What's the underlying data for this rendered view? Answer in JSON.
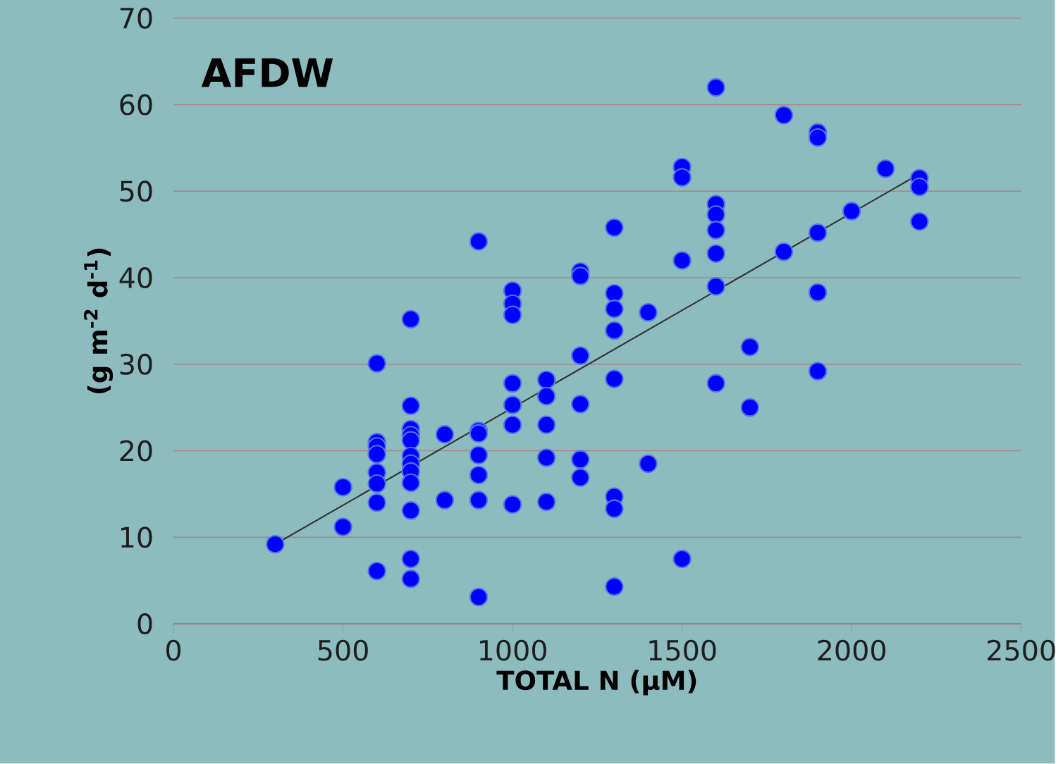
{
  "chart_data": {
    "type": "scatter",
    "title": "AFDW",
    "xlabel": "TOTAL N (µM)",
    "ylabel": "(g m$^{-2}$ d$^{-1}$)",
    "xlim": [
      0,
      2500
    ],
    "ylim": [
      0,
      70
    ],
    "xticks": [
      0,
      500,
      1000,
      1500,
      2000,
      2500
    ],
    "yticks": [
      0,
      10,
      20,
      30,
      40,
      50,
      60,
      70
    ],
    "grid": "y",
    "series": [
      {
        "color": "#0000ff",
        "marker": "circle",
        "x": [
          300,
          500,
          500,
          600,
          600,
          600,
          600,
          600,
          600,
          600,
          600,
          700,
          700,
          700,
          700,
          700,
          700,
          700,
          700,
          700,
          700,
          700,
          700,
          800,
          800,
          900,
          900,
          900,
          900,
          900,
          900,
          900,
          1000,
          1000,
          1000,
          1000,
          1000,
          1000,
          1000,
          1100,
          1100,
          1100,
          1100,
          1100,
          1200,
          1200,
          1200,
          1200,
          1200,
          1200,
          1300,
          1300,
          1300,
          1300,
          1300,
          1300,
          1300,
          1300,
          1400,
          1400,
          1500,
          1500,
          1500,
          1500,
          1600,
          1600,
          1600,
          1600,
          1600,
          1600,
          1600,
          1700,
          1700,
          1800,
          1800,
          1900,
          1900,
          1900,
          1900,
          1900,
          2000,
          2100,
          2200,
          2200,
          2200
        ],
        "values": [
          9.2,
          15.8,
          11.2,
          30.1,
          21,
          20.5,
          19.6,
          17.5,
          16.2,
          14,
          6.1,
          35.2,
          25.2,
          22.5,
          21.8,
          21.2,
          19.4,
          18.5,
          17.6,
          16.3,
          13.1,
          7.5,
          5.2,
          21.9,
          14.3,
          44.2,
          22.3,
          22,
          19.5,
          17.2,
          14.3,
          3.1,
          38.5,
          37,
          35.7,
          27.8,
          25.3,
          23,
          13.8,
          28.2,
          26.3,
          23,
          19.2,
          14.1,
          40.7,
          40.2,
          31,
          25.4,
          19,
          16.9,
          45.8,
          38.2,
          36.4,
          33.9,
          28.3,
          14.7,
          13.3,
          4.3,
          36,
          18.5,
          52.8,
          51.6,
          42,
          7.5,
          62,
          48.5,
          47.3,
          45.5,
          42.8,
          39,
          27.8,
          32,
          25,
          58.8,
          43,
          56.8,
          56.2,
          45.2,
          38.3,
          29.2,
          47.7,
          52.6,
          51.5,
          50.5,
          46.5
        ]
      },
      {
        "type": "line",
        "color": "#303030",
        "marker": "none",
        "x": [
          300,
          2200
        ],
        "values": [
          9.2,
          52.0
        ]
      }
    ]
  }
}
